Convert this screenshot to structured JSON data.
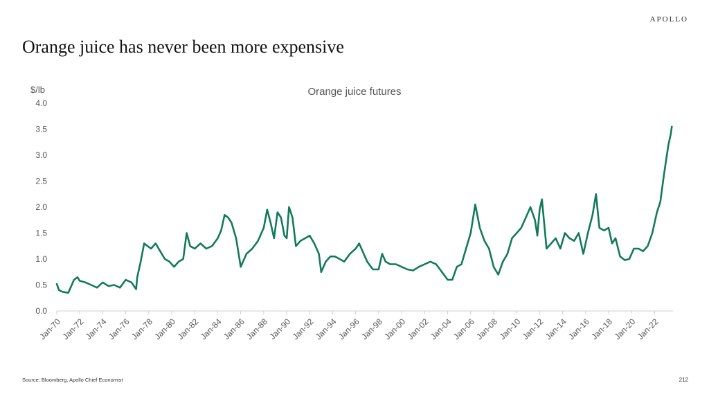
{
  "brand": "APOLLO",
  "page_title": "Orange juice has never been more expensive",
  "source": "Source: Bloomberg, Apollo Chief Economist",
  "page_number": "212",
  "colors": {
    "line": "#127a5a",
    "axis": "#cfcfcf",
    "text": "#555555"
  },
  "chart_data": {
    "type": "line",
    "title": "Orange juice futures",
    "ylabel": "$/lb",
    "xlabel": "",
    "ylim": [
      0,
      4
    ],
    "yticks": [
      "0.0",
      "0.5",
      "1.0",
      "1.5",
      "2.0",
      "2.5",
      "3.0",
      "3.5",
      "4.0"
    ],
    "xlim": [
      1970.0,
      2023.6
    ],
    "xticks": [
      "Jan-70",
      "Jan-72",
      "Jan-74",
      "Jan-76",
      "Jan-78",
      "Jan-80",
      "Jan-82",
      "Jan-84",
      "Jan-86",
      "Jan-88",
      "Jan-90",
      "Jan-92",
      "Jan-94",
      "Jan-96",
      "Jan-98",
      "Jan-00",
      "Jan-02",
      "Jan-04",
      "Jan-06",
      "Jan-08",
      "Jan-10",
      "Jan-12",
      "Jan-14",
      "Jan-16",
      "Jan-18",
      "Jan-20",
      "Jan-22"
    ],
    "grid": false,
    "series": [
      {
        "name": "",
        "x": [
          1970.0,
          1970.2,
          1970.5,
          1971.0,
          1971.5,
          1971.8,
          1972.0,
          1972.5,
          1973.0,
          1973.5,
          1974.0,
          1974.5,
          1975.0,
          1975.5,
          1976.0,
          1976.5,
          1976.9,
          1977.0,
          1977.3,
          1977.6,
          1977.9,
          1978.2,
          1978.6,
          1979.0,
          1979.4,
          1979.8,
          1980.2,
          1980.6,
          1981.0,
          1981.3,
          1981.6,
          1982.0,
          1982.5,
          1983.0,
          1983.5,
          1984.0,
          1984.3,
          1984.6,
          1984.9,
          1985.2,
          1985.6,
          1986.0,
          1986.5,
          1987.0,
          1987.5,
          1988.0,
          1988.3,
          1988.6,
          1988.9,
          1989.2,
          1989.5,
          1989.8,
          1990.0,
          1990.2,
          1990.5,
          1990.8,
          1991.2,
          1991.6,
          1992.0,
          1992.4,
          1992.8,
          1993.0,
          1993.4,
          1993.8,
          1994.2,
          1994.6,
          1995.0,
          1995.5,
          1996.0,
          1996.3,
          1996.6,
          1997.0,
          1997.5,
          1998.0,
          1998.3,
          1998.6,
          1999.0,
          1999.5,
          2000.0,
          2000.5,
          2001.0,
          2001.5,
          2002.0,
          2002.5,
          2003.0,
          2003.5,
          2004.0,
          2004.4,
          2004.8,
          2005.2,
          2005.6,
          2006.0,
          2006.4,
          2006.8,
          2007.2,
          2007.6,
          2008.0,
          2008.4,
          2008.8,
          2009.2,
          2009.6,
          2010.0,
          2010.4,
          2010.8,
          2011.2,
          2011.6,
          2011.8,
          2012.0,
          2012.2,
          2012.6,
          2013.0,
          2013.4,
          2013.8,
          2014.2,
          2014.6,
          2015.0,
          2015.4,
          2015.8,
          2016.2,
          2016.6,
          2016.9,
          2017.2,
          2017.6,
          2018.0,
          2018.3,
          2018.6,
          2019.0,
          2019.4,
          2019.8,
          2020.2,
          2020.6,
          2021.0,
          2021.4,
          2021.8,
          2022.2,
          2022.5,
          2022.8,
          2023.0,
          2023.2,
          2023.4,
          2023.5
        ],
        "values": [
          0.52,
          0.4,
          0.37,
          0.35,
          0.6,
          0.65,
          0.58,
          0.55,
          0.5,
          0.45,
          0.55,
          0.48,
          0.5,
          0.45,
          0.6,
          0.55,
          0.42,
          0.65,
          0.95,
          1.3,
          1.25,
          1.2,
          1.3,
          1.15,
          1.0,
          0.95,
          0.85,
          0.95,
          1.0,
          1.5,
          1.25,
          1.2,
          1.3,
          1.2,
          1.25,
          1.4,
          1.55,
          1.85,
          1.8,
          1.7,
          1.4,
          0.85,
          1.1,
          1.2,
          1.35,
          1.6,
          1.95,
          1.7,
          1.4,
          1.9,
          1.8,
          1.45,
          1.4,
          2.0,
          1.8,
          1.25,
          1.35,
          1.4,
          1.45,
          1.3,
          1.1,
          0.75,
          0.95,
          1.05,
          1.05,
          1.0,
          0.95,
          1.1,
          1.2,
          1.3,
          1.15,
          0.95,
          0.8,
          0.8,
          1.1,
          0.95,
          0.9,
          0.9,
          0.85,
          0.8,
          0.78,
          0.85,
          0.9,
          0.95,
          0.9,
          0.75,
          0.6,
          0.6,
          0.85,
          0.9,
          1.2,
          1.5,
          2.05,
          1.6,
          1.35,
          1.2,
          0.85,
          0.7,
          0.95,
          1.1,
          1.4,
          1.5,
          1.6,
          1.8,
          2.0,
          1.75,
          1.45,
          1.95,
          2.15,
          1.2,
          1.3,
          1.4,
          1.2,
          1.5,
          1.4,
          1.35,
          1.5,
          1.1,
          1.5,
          1.85,
          2.25,
          1.6,
          1.55,
          1.6,
          1.3,
          1.4,
          1.05,
          0.98,
          1.0,
          1.2,
          1.2,
          1.15,
          1.25,
          1.5,
          1.9,
          2.1,
          2.6,
          2.9,
          3.2,
          3.4,
          3.55
        ]
      }
    ]
  }
}
